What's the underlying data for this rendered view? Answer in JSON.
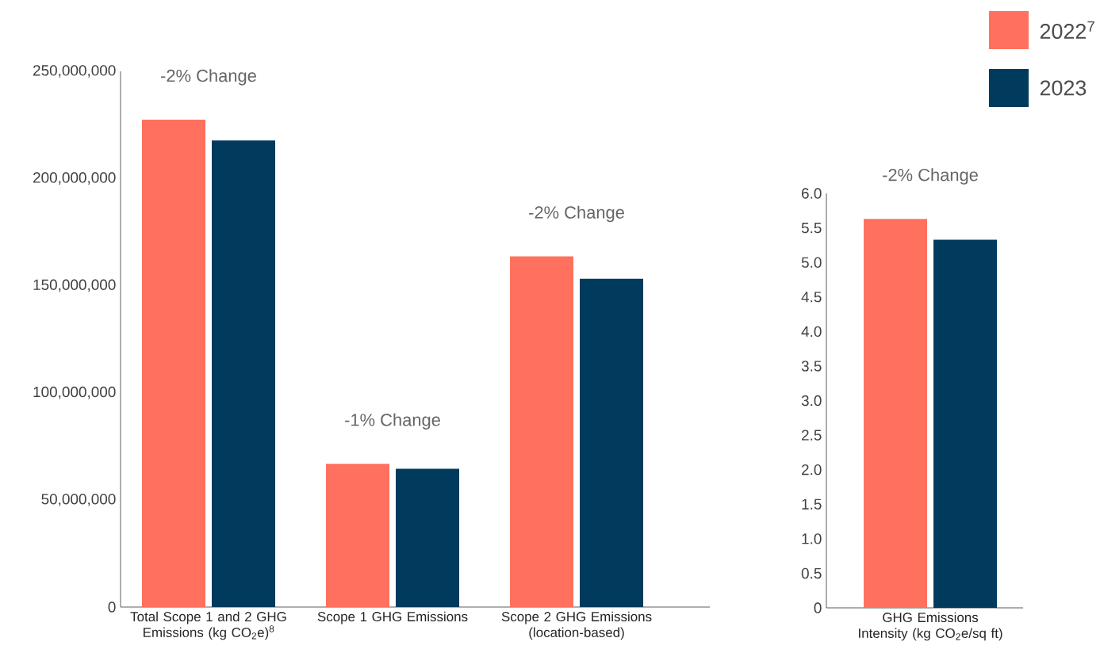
{
  "chart_data": [
    {
      "type": "bar",
      "categories": [
        "Total Scope 1 and 2 GHG Emissions (kg CO$_{2}$e)$^{8}$",
        "Scope 1 GHG Emissions",
        "Scope 2 GHG Emissions (location-based)"
      ],
      "series": [
        {
          "color": "#ff705f",
          "values": [
            227400000,
            66800000,
            163600000
          ]
        },
        {
          "color": "#003a5c",
          "values": [
            217700000,
            64500000,
            153200000
          ]
        }
      ],
      "ylim": [
        0,
        250000000
      ],
      "yticks": [
        0,
        {
          "value": 50000000,
          "label": "50,000,000"
        },
        {
          "value": 100000000,
          "label": "100,000,000"
        },
        {
          "value": 150000000,
          "label": "150,000,000"
        },
        {
          "value": 200000000,
          "label": "200,000,000"
        },
        {
          "value": 250000000,
          "label": "250,000,000"
        }
      ],
      "annotations": [
        "-2% Change",
        "-1% Change",
        "-2% Change"
      ]
    },
    {
      "type": "bar",
      "categories": [
        "GHG Emissions Intensity (kg CO$_{2}$e/sq ft)"
      ],
      "series": [
        {
          "name": "2022$^{7}$",
          "color": "#ff705f",
          "values": [
            5.63
          ]
        },
        {
          "name": "2023",
          "color": "#003a5c",
          "values": [
            5.33
          ]
        }
      ],
      "ylim": [
        0,
        6
      ],
      "yticks": [
        0,
        {
          "value": 0.5,
          "label": "0.5"
        },
        {
          "value": 1,
          "label": "1.0"
        },
        {
          "value": 1.5,
          "label": "1.5"
        },
        {
          "value": 2,
          "label": "2.0"
        },
        {
          "value": 2.5,
          "label": "2.5"
        },
        {
          "value": 3,
          "label": "3.0"
        },
        {
          "value": 3.5,
          "label": "3.5"
        },
        {
          "value": 4,
          "label": "4.0"
        },
        {
          "value": 4.5,
          "label": "4.5"
        },
        {
          "value": 5,
          "label": "5.0"
        },
        {
          "value": 5.5,
          "label": "5.5"
        },
        {
          "value": 6,
          "label": "6.0"
        }
      ],
      "legend": "top right",
      "annotations": [
        "-2% Change"
      ]
    }
  ]
}
